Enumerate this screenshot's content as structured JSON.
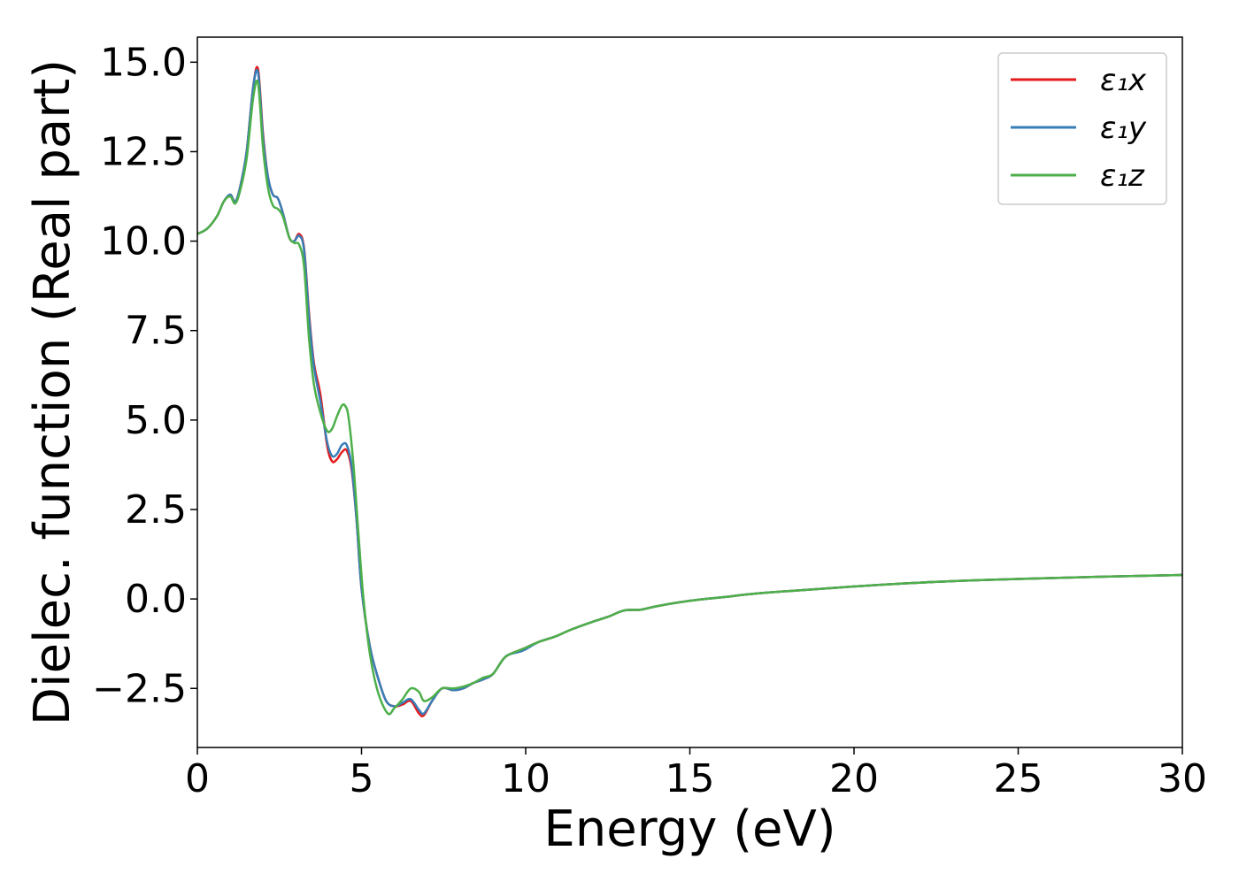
{
  "chart_data": {
    "type": "line",
    "title": "",
    "xlabel": "Energy (eV)",
    "ylabel": "Dielec. function (Real part)",
    "xlim": [
      0,
      30
    ],
    "ylim": [
      -4.15,
      15.7
    ],
    "xticks": [
      0,
      5,
      10,
      15,
      20,
      25,
      30
    ],
    "xtick_labels": [
      "0",
      "5",
      "10",
      "15",
      "20",
      "25",
      "30"
    ],
    "yticks": [
      -2.5,
      0,
      2.5,
      5,
      7.5,
      10,
      12.5,
      15
    ],
    "ytick_labels": [
      "−2.5",
      "0.0",
      "2.5",
      "5.0",
      "7.5",
      "10.0",
      "12.5",
      "15.0"
    ],
    "grid": false,
    "legend_position": "top-right",
    "series": [
      {
        "name": "ε₁x",
        "color": "#e41a1c",
        "x": [
          0,
          0.3,
          0.6,
          0.8,
          1.0,
          1.15,
          1.3,
          1.5,
          1.7,
          1.85,
          2.0,
          2.15,
          2.3,
          2.45,
          2.6,
          2.8,
          2.95,
          3.1,
          3.25,
          3.4,
          3.55,
          3.75,
          3.95,
          4.1,
          4.25,
          4.4,
          4.55,
          4.7,
          4.85,
          5.0,
          5.25,
          5.5,
          5.75,
          6.0,
          6.25,
          6.5,
          6.75,
          6.9,
          7.15,
          7.45,
          7.8,
          8.1,
          8.4,
          8.7,
          9.0,
          9.3,
          9.5,
          9.9,
          10.4,
          10.9,
          11.4,
          12.0,
          12.5,
          13.0,
          13.5,
          14.0,
          15.0,
          16.0,
          17.0,
          18.0,
          20.0,
          22.5,
          25.0,
          27.5,
          30.0
        ],
        "y": [
          10.2,
          10.35,
          10.7,
          11.1,
          11.3,
          11.1,
          11.5,
          12.5,
          14.3,
          14.8,
          13.0,
          11.8,
          11.3,
          11.2,
          10.8,
          10.1,
          10.0,
          10.2,
          9.8,
          8.0,
          6.6,
          5.7,
          4.3,
          3.85,
          3.9,
          4.1,
          4.15,
          3.6,
          2.2,
          0.3,
          -1.3,
          -2.2,
          -2.85,
          -3.0,
          -2.95,
          -2.85,
          -3.2,
          -3.25,
          -2.85,
          -2.5,
          -2.55,
          -2.5,
          -2.35,
          -2.25,
          -2.1,
          -1.7,
          -1.55,
          -1.4,
          -1.2,
          -1.05,
          -0.85,
          -0.65,
          -0.5,
          -0.32,
          -0.3,
          -0.2,
          -0.05,
          0.05,
          0.15,
          0.22,
          0.35,
          0.48,
          0.56,
          0.62,
          0.67
        ]
      },
      {
        "name": "ε₁y",
        "color": "#377eb8",
        "x": [
          0,
          0.3,
          0.6,
          0.8,
          1.0,
          1.15,
          1.3,
          1.5,
          1.7,
          1.85,
          2.0,
          2.15,
          2.3,
          2.45,
          2.6,
          2.8,
          2.95,
          3.1,
          3.25,
          3.4,
          3.55,
          3.75,
          3.95,
          4.1,
          4.25,
          4.4,
          4.55,
          4.7,
          4.85,
          5.0,
          5.25,
          5.5,
          5.75,
          6.0,
          6.25,
          6.5,
          6.75,
          6.9,
          7.15,
          7.45,
          7.8,
          8.1,
          8.4,
          8.7,
          9.0,
          9.3,
          9.5,
          9.9,
          10.4,
          10.9,
          11.4,
          12.0,
          12.5,
          13.0,
          13.5,
          14.0,
          15.0,
          16.0,
          17.0,
          18.0,
          20.0,
          22.5,
          25.0,
          27.5,
          30.0
        ],
        "y": [
          10.2,
          10.35,
          10.7,
          11.1,
          11.3,
          11.1,
          11.5,
          12.5,
          14.3,
          14.7,
          12.9,
          11.8,
          11.3,
          11.2,
          10.8,
          10.1,
          10.0,
          10.15,
          9.75,
          7.9,
          6.5,
          5.5,
          4.4,
          4.0,
          4.05,
          4.3,
          4.3,
          3.7,
          2.2,
          0.3,
          -1.3,
          -2.2,
          -2.85,
          -3.0,
          -2.9,
          -2.8,
          -3.1,
          -3.2,
          -2.85,
          -2.5,
          -2.55,
          -2.5,
          -2.35,
          -2.25,
          -2.1,
          -1.7,
          -1.55,
          -1.45,
          -1.2,
          -1.05,
          -0.85,
          -0.65,
          -0.5,
          -0.32,
          -0.3,
          -0.2,
          -0.05,
          0.05,
          0.15,
          0.22,
          0.35,
          0.48,
          0.56,
          0.62,
          0.67
        ]
      },
      {
        "name": "ε₁z",
        "color": "#4daf4a",
        "x": [
          0,
          0.3,
          0.6,
          0.8,
          1.0,
          1.15,
          1.3,
          1.5,
          1.7,
          1.85,
          2.0,
          2.15,
          2.3,
          2.45,
          2.6,
          2.8,
          2.95,
          3.1,
          3.25,
          3.4,
          3.55,
          3.75,
          3.95,
          4.1,
          4.25,
          4.4,
          4.5,
          4.6,
          4.75,
          4.9,
          5.05,
          5.25,
          5.5,
          5.8,
          6.0,
          6.25,
          6.5,
          6.75,
          6.9,
          7.15,
          7.45,
          7.8,
          8.1,
          8.4,
          8.7,
          9.0,
          9.3,
          9.5,
          9.9,
          10.4,
          10.9,
          11.4,
          12.0,
          12.5,
          13.0,
          13.5,
          14.0,
          15.0,
          16.0,
          17.0,
          18.0,
          20.0,
          22.5,
          25.0,
          27.5,
          30.0
        ],
        "y": [
          10.2,
          10.35,
          10.7,
          11.1,
          11.25,
          11.05,
          11.4,
          12.3,
          14.0,
          14.4,
          12.6,
          11.5,
          11.0,
          10.9,
          10.7,
          10.1,
          9.95,
          9.9,
          9.3,
          7.3,
          6.0,
          5.2,
          4.7,
          4.75,
          5.1,
          5.4,
          5.4,
          5.1,
          3.8,
          1.9,
          0.1,
          -1.5,
          -2.6,
          -3.2,
          -3.05,
          -2.8,
          -2.5,
          -2.6,
          -2.85,
          -2.75,
          -2.5,
          -2.5,
          -2.45,
          -2.35,
          -2.2,
          -2.1,
          -1.7,
          -1.55,
          -1.4,
          -1.2,
          -1.05,
          -0.85,
          -0.65,
          -0.5,
          -0.32,
          -0.3,
          -0.2,
          -0.05,
          0.05,
          0.15,
          0.22,
          0.35,
          0.48,
          0.56,
          0.62,
          0.67
        ]
      }
    ]
  }
}
